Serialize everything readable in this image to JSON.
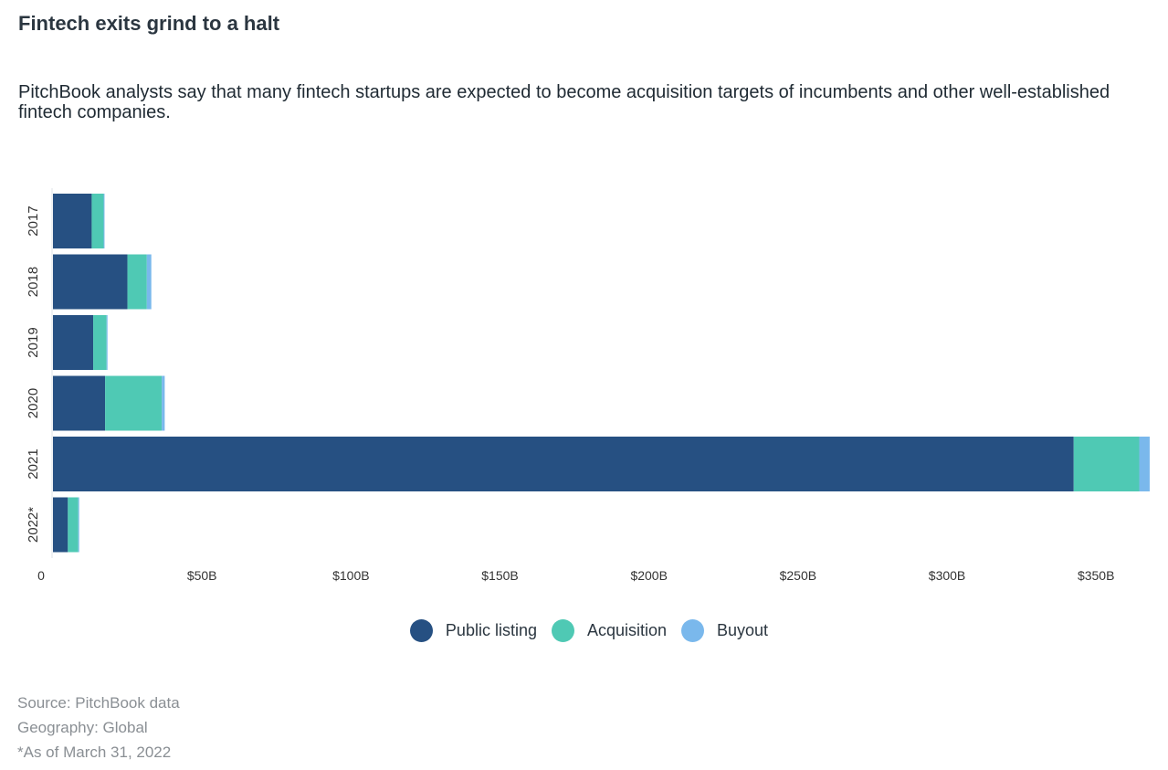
{
  "header": {
    "title": "Fintech exits grind to a halt",
    "subtitle": "PitchBook analysts say that many fintech startups are expected to become acquisition targets of incumbents and other well-established fintech companies."
  },
  "chart_data": {
    "type": "bar",
    "orientation": "horizontal",
    "stacked": true,
    "categories": [
      "2017",
      "2018",
      "2019",
      "2020",
      "2021",
      "2022*"
    ],
    "series": [
      {
        "name": "Public listing",
        "color": "#265082",
        "values": [
          13.0,
          25.0,
          13.5,
          17.5,
          342.5,
          5.0
        ]
      },
      {
        "name": "Acquisition",
        "color": "#4fc9b4",
        "values": [
          4.0,
          6.5,
          4.5,
          19.0,
          22.0,
          3.5
        ]
      },
      {
        "name": "Buyout",
        "color": "#7ab8ec",
        "values": [
          0.3,
          1.5,
          0.3,
          1.0,
          3.5,
          0.3
        ]
      }
    ],
    "xlim": [
      0,
      372
    ],
    "xticks": [
      {
        "value": 0,
        "label": "0"
      },
      {
        "value": 50,
        "label": "$50B"
      },
      {
        "value": 100,
        "label": "$100B"
      },
      {
        "value": 150,
        "label": "$150B"
      },
      {
        "value": 200,
        "label": "$200B"
      },
      {
        "value": 250,
        "label": "$250B"
      },
      {
        "value": 300,
        "label": "$300B"
      },
      {
        "value": 350,
        "label": "$350B"
      }
    ],
    "xlabel": "",
    "ylabel": "",
    "grid": false,
    "legend_position": "bottom"
  },
  "legend": [
    {
      "label": "Public listing",
      "color": "#265082"
    },
    {
      "label": "Acquisition",
      "color": "#4fc9b4"
    },
    {
      "label": "Buyout",
      "color": "#7ab8ec"
    }
  ],
  "footnotes": {
    "source": "Source: PitchBook data",
    "geography": "Geography: Global",
    "asof": "*As of March 31, 2022"
  }
}
